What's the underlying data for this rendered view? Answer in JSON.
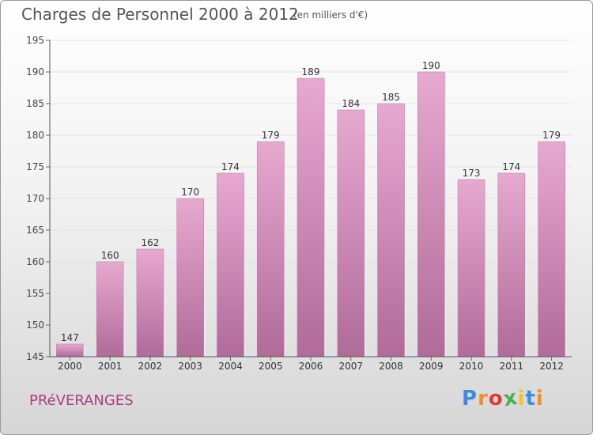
{
  "title": "Charges de Personnel 2000 à 2012",
  "subtitle": "(en milliers d'€)",
  "commune": "PRéVERANGES",
  "logo": {
    "letters": [
      "P",
      "r",
      "o",
      "x",
      "i",
      "t",
      "i"
    ],
    "colors": [
      "#3b8fd9",
      "#f28c28",
      "#e03a3a",
      "#4caf50",
      "#f2c12e",
      "#3b8fd9",
      "#f28c28"
    ]
  },
  "colors": {
    "bar": "#d98fbf",
    "bar_top": "#e6a8cf",
    "bar_bottom": "#b06a98",
    "axis": "#555555"
  },
  "chart_data": {
    "type": "bar",
    "categories": [
      "2000",
      "2001",
      "2002",
      "2003",
      "2004",
      "2005",
      "2006",
      "2007",
      "2008",
      "2009",
      "2010",
      "2011",
      "2012"
    ],
    "values": [
      147,
      160,
      162,
      170,
      174,
      179,
      189,
      184,
      185,
      190,
      173,
      174,
      179
    ],
    "ylim": [
      145,
      195
    ],
    "yticks": [
      145,
      150,
      155,
      160,
      165,
      170,
      175,
      180,
      185,
      190,
      195
    ],
    "grid": true,
    "xlabel": "",
    "ylabel": ""
  }
}
